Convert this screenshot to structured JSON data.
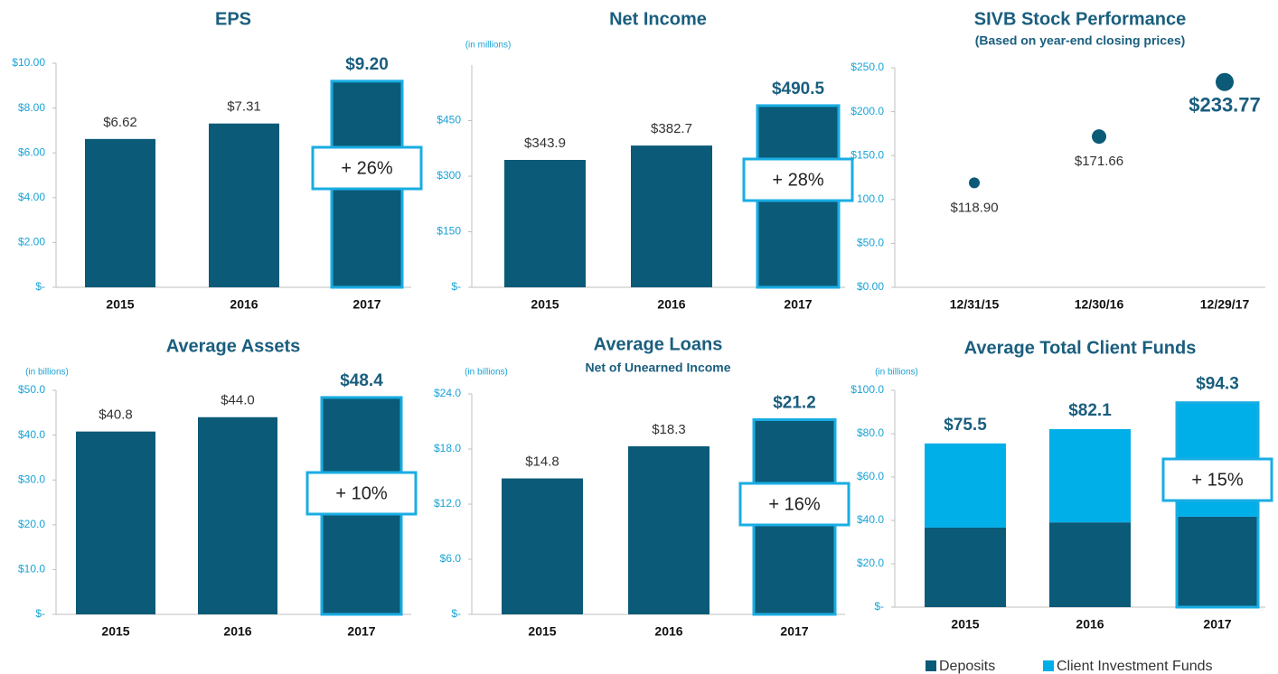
{
  "chart_data": [
    {
      "type": "bar",
      "title": "EPS",
      "categories": [
        "2015",
        "2016",
        "2017"
      ],
      "values": [
        6.62,
        7.31,
        9.2
      ],
      "value_labels": [
        "$6.62",
        "$7.31",
        "$9.20"
      ],
      "color": "#0b5a78",
      "highlight_color": "#19ade3",
      "ylim": [
        0,
        10
      ],
      "yticks": [
        {
          "value": 0,
          "label": "$-"
        },
        {
          "value": 2,
          "label": "$2.00"
        },
        {
          "value": 4,
          "label": "$4.00"
        },
        {
          "value": 6,
          "label": "$6.00"
        },
        {
          "value": 8,
          "label": "$8.00"
        },
        {
          "value": 10,
          "label": "$10.00"
        }
      ],
      "annotation": "+ 26%"
    },
    {
      "type": "bar",
      "title": "Net Income",
      "unit_label": "(in millions)",
      "categories": [
        "2015",
        "2016",
        "2017"
      ],
      "values": [
        343.9,
        382.7,
        490.5
      ],
      "value_labels": [
        "$343.9",
        "$382.7",
        "$490.5"
      ],
      "color": "#0b5a78",
      "highlight_color": "#19ade3",
      "ylim": [
        0,
        600
      ],
      "yticks": [
        {
          "value": 0,
          "label": "$-"
        },
        {
          "value": 150,
          "label": "$150"
        },
        {
          "value": 300,
          "label": "$300"
        },
        {
          "value": 450,
          "label": "$450"
        }
      ],
      "annotation": "+ 28%"
    },
    {
      "type": "dot",
      "title": "SIVB Stock Performance",
      "subtitle": "(Based on year-end closing prices)",
      "categories": [
        "12/31/15",
        "12/30/16",
        "12/29/17"
      ],
      "values": [
        118.9,
        171.66,
        233.77
      ],
      "value_labels": [
        "$118.90",
        "$171.66",
        "$233.77"
      ],
      "color": "#0b5a78",
      "ylim": [
        0,
        250
      ],
      "yticks": [
        {
          "value": 0,
          "label": "$0.00"
        },
        {
          "value": 50,
          "label": "$50.0"
        },
        {
          "value": 100,
          "label": "100.0"
        },
        {
          "value": 150,
          "label": "$150.0"
        },
        {
          "value": 200,
          "label": "$200.0"
        },
        {
          "value": 250,
          "label": "$250.0"
        }
      ]
    },
    {
      "type": "bar",
      "title": "Average Assets",
      "unit_label": "(in billions)",
      "categories": [
        "2015",
        "2016",
        "2017"
      ],
      "values": [
        40.8,
        44.0,
        48.4
      ],
      "value_labels": [
        "$40.8",
        "$44.0",
        "$48.4"
      ],
      "color": "#0b5a78",
      "highlight_color": "#19ade3",
      "ylim": [
        0,
        50
      ],
      "yticks": [
        {
          "value": 0,
          "label": "$-"
        },
        {
          "value": 10,
          "label": "$10.0"
        },
        {
          "value": 20,
          "label": "$20.0"
        },
        {
          "value": 30,
          "label": "$30.0"
        },
        {
          "value": 40,
          "label": "$40.0"
        },
        {
          "value": 50,
          "label": "$50.0"
        }
      ],
      "annotation": "+ 10%"
    },
    {
      "type": "bar",
      "title": "Average Loans",
      "subtitle": "Net of Unearned Income",
      "unit_label": "(in billions)",
      "categories": [
        "2015",
        "2016",
        "2017"
      ],
      "values": [
        14.8,
        18.3,
        21.2
      ],
      "value_labels": [
        "$14.8",
        "$18.3",
        "$21.2"
      ],
      "color": "#0b5a78",
      "highlight_color": "#19ade3",
      "ylim": [
        0,
        24
      ],
      "yticks": [
        {
          "value": 0,
          "label": "$-"
        },
        {
          "value": 6,
          "label": "$6.0"
        },
        {
          "value": 12,
          "label": "$12.0"
        },
        {
          "value": 18,
          "label": "$18.0"
        },
        {
          "value": 24,
          "label": "$24.0"
        }
      ],
      "annotation": "+ 16%"
    },
    {
      "type": "stacked_bar",
      "title": "Average Total Client Funds",
      "unit_label": "(in billions)",
      "categories": [
        "2015",
        "2016",
        "2017"
      ],
      "series": [
        {
          "name": "Deposits",
          "color": "#0b5a78",
          "values": [
            36.7,
            39.1,
            41.7
          ]
        },
        {
          "name": "Client Investment Funds",
          "color": "#00aee8",
          "values": [
            38.8,
            43.0,
            52.6
          ]
        }
      ],
      "totals": [
        75.5,
        82.1,
        94.3
      ],
      "total_labels": [
        "$75.5",
        "$82.1",
        "$94.3"
      ],
      "highlight_color": "#19ade3",
      "ylim": [
        0,
        100
      ],
      "yticks": [
        {
          "value": 0,
          "label": "$-"
        },
        {
          "value": 20,
          "label": "$20.0"
        },
        {
          "value": 40,
          "label": "$40.0"
        },
        {
          "value": 60,
          "label": "$60.0"
        },
        {
          "value": 80,
          "label": "$80.0"
        },
        {
          "value": 100,
          "label": "$100.0"
        }
      ],
      "annotation": "+ 15%",
      "legend": "bottom-right"
    }
  ]
}
